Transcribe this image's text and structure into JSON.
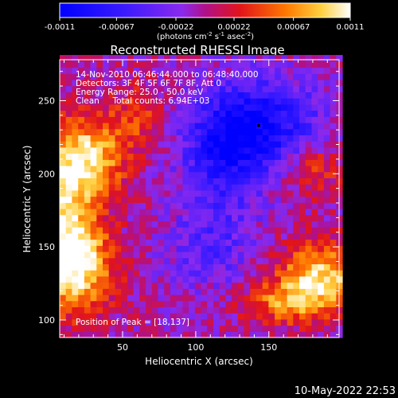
{
  "chart_data": {
    "type": "heatmap",
    "title": "Reconstructed RHESSI Image",
    "xlabel": "Heliocentric X (arcsec)",
    "ylabel": "Heliocentric Y (arcsec)",
    "xlim": [
      7,
      198
    ],
    "ylim": [
      88,
      278
    ],
    "x_ticks": [
      50,
      100,
      150
    ],
    "y_ticks": [
      100,
      150,
      200,
      250
    ],
    "colorbar": {
      "range": [
        -0.0011,
        0.0011
      ],
      "tick_labels": [
        "-0.0011",
        "-0.00067",
        "-0.00022",
        "0.00022",
        "0.00067",
        "0.0011"
      ],
      "label": "(photons cm",
      "label_sup1": "-2",
      "label_mid": " s",
      "label_sup2": "-1",
      "label_mid2": " asec",
      "label_sup3": "-2",
      "label_end": ")"
    },
    "annotations": [
      "14-Nov-2010 06:46:44.000 to 06:48:40.000",
      "Detectors: 3F 4F 5F 6F 7F 8F, Att 0",
      "Energy Range: 25.0 - 50.0 keV",
      "Clean     Total counts: 6.94E+03"
    ],
    "peak_label": "Position of Peak = [18,137]",
    "peak": [
      18,
      137
    ],
    "min_marker": [
      143,
      233
    ],
    "sources": [
      {
        "x": 18,
        "y": 137,
        "amp": 0.0011,
        "sx": 18,
        "sy": 22
      },
      {
        "x": 28,
        "y": 212,
        "amp": 0.0009,
        "sx": 18,
        "sy": 18
      },
      {
        "x": 10,
        "y": 180,
        "amp": 0.0008,
        "sx": 14,
        "sy": 30
      },
      {
        "x": 185,
        "y": 130,
        "amp": 0.001,
        "sx": 20,
        "sy": 16
      },
      {
        "x": 160,
        "y": 112,
        "amp": 0.0006,
        "sx": 20,
        "sy": 10
      },
      {
        "x": 60,
        "y": 240,
        "amp": 0.0004,
        "sx": 14,
        "sy": 14
      },
      {
        "x": 180,
        "y": 205,
        "amp": 0.00045,
        "sx": 16,
        "sy": 14
      },
      {
        "x": 145,
        "y": 233,
        "amp": -0.0009,
        "sx": 28,
        "sy": 22
      },
      {
        "x": 118,
        "y": 210,
        "amp": -0.0006,
        "sx": 20,
        "sy": 26
      },
      {
        "x": 110,
        "y": 150,
        "amp": -0.0004,
        "sx": 22,
        "sy": 20
      }
    ]
  },
  "footer": {
    "date": "10-May-2022 22:53"
  }
}
